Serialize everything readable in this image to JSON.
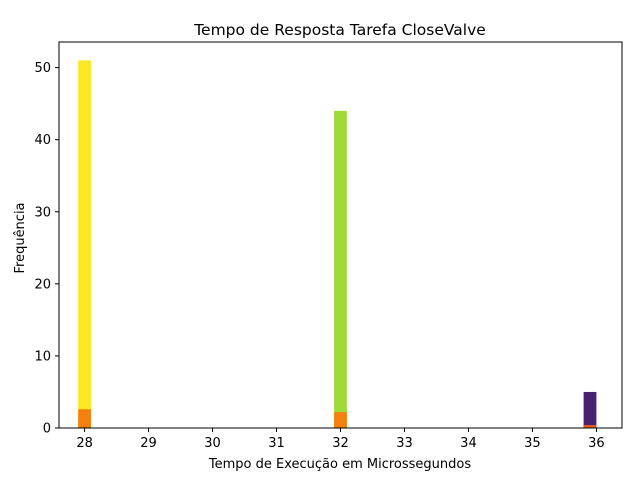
{
  "chart_data": {
    "type": "bar",
    "title": "Tempo de Resposta Tarefa CloseValve",
    "xlabel": "Tempo de Execução em Microssegundos",
    "ylabel": "Frequência",
    "xlim": [
      27.6,
      36.4
    ],
    "ylim": [
      0,
      53.55
    ],
    "xticks": [
      28,
      29,
      30,
      31,
      32,
      33,
      34,
      35,
      36
    ],
    "yticks": [
      0,
      10,
      20,
      30,
      40,
      50
    ],
    "grid": false,
    "bars": [
      {
        "x": 28.0,
        "width": 0.2,
        "value": 51,
        "color": "#fde725"
      },
      {
        "x": 28.0,
        "width": 0.2,
        "value": 2.6,
        "color": "#f5800f"
      },
      {
        "x": 32.0,
        "width": 0.2,
        "value": 44,
        "color": "#a0da39"
      },
      {
        "x": 32.0,
        "width": 0.2,
        "value": 2.2,
        "color": "#f5800f"
      },
      {
        "x": 35.9,
        "width": 0.2,
        "value": 5,
        "color": "#482173"
      },
      {
        "x": 35.9,
        "width": 0.2,
        "value": 0.4,
        "color": "#e8601c"
      }
    ]
  }
}
